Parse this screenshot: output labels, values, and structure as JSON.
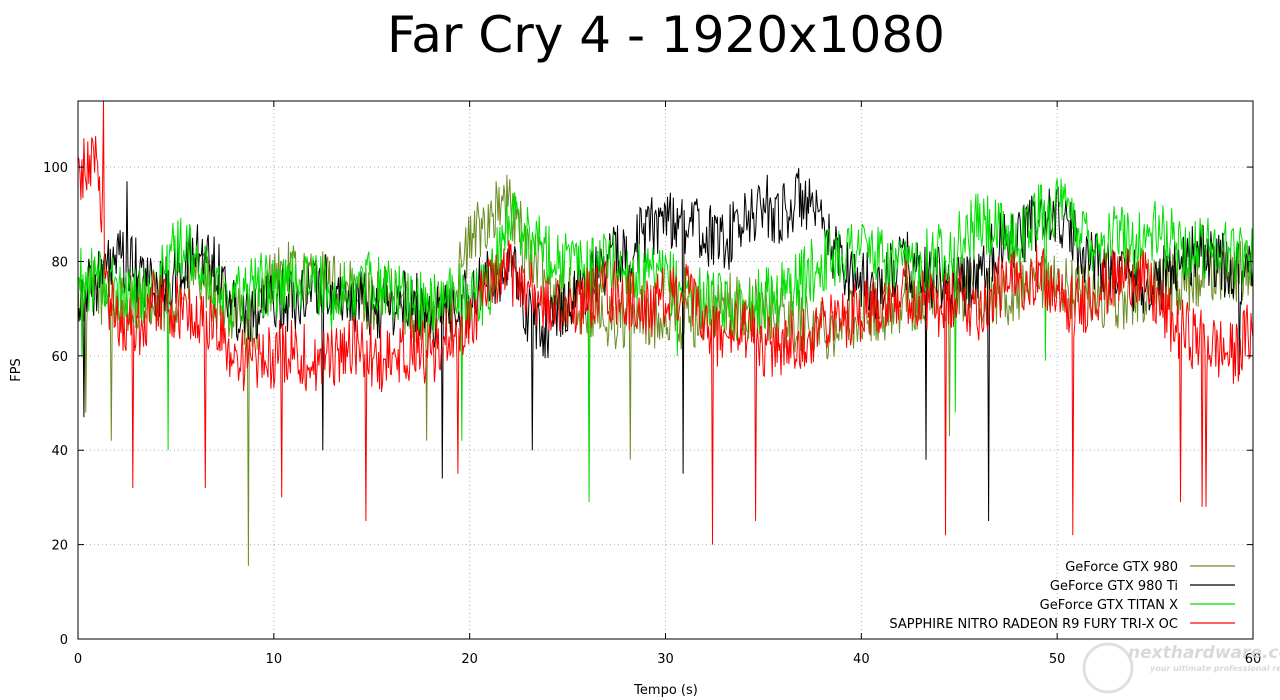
{
  "chart_data": {
    "type": "line",
    "title": "Far Cry 4 - 1920x1080",
    "xlabel": "Tempo (s)",
    "ylabel": "FPS",
    "xlim": [
      0,
      60
    ],
    "ylim": [
      0,
      114
    ],
    "xticks": [
      0,
      10,
      20,
      30,
      40,
      50,
      60
    ],
    "yticks": [
      0,
      20,
      40,
      60,
      80,
      100
    ],
    "grid": true,
    "legend_position": "bottom-right",
    "series": [
      {
        "name": "GeForce GTX 980",
        "color": "#6b8e23",
        "x": [
          0,
          1,
          2,
          3,
          4,
          5,
          6,
          7,
          8,
          9,
          10,
          11,
          12,
          13,
          14,
          15,
          16,
          17,
          18,
          19,
          20,
          21,
          22,
          23,
          24,
          25,
          26,
          27,
          28,
          29,
          30,
          31,
          32,
          33,
          34,
          35,
          36,
          37,
          38,
          39,
          40,
          41,
          42,
          43,
          44,
          45,
          46,
          47,
          48,
          49,
          50,
          51,
          52,
          53,
          54,
          55,
          56,
          57,
          58,
          59,
          60
        ],
        "values": [
          72,
          74,
          70,
          73,
          69,
          72,
          78,
          72,
          70,
          66,
          78,
          77,
          76,
          75,
          73,
          72,
          72,
          70,
          68,
          72,
          84,
          90,
          92,
          82,
          76,
          72,
          70,
          68,
          67,
          68,
          69,
          67,
          70,
          71,
          70,
          69,
          68,
          67,
          66,
          67,
          69,
          70,
          71,
          72,
          73,
          74,
          73,
          72,
          73,
          74,
          75,
          74,
          73,
          72,
          73,
          74,
          75,
          76,
          77,
          78,
          78
        ],
        "spikes": [
          [
            0.4,
            48
          ],
          [
            1.7,
            42
          ],
          [
            8.7,
            15.5
          ],
          [
            17.8,
            42
          ],
          [
            26.1,
            42
          ],
          [
            28.2,
            38
          ],
          [
            44.5,
            43
          ]
        ]
      },
      {
        "name": "GeForce GTX 980 Ti",
        "color": "#000000",
        "x": [
          0,
          1,
          2,
          3,
          4,
          5,
          6,
          7,
          8,
          9,
          10,
          11,
          12,
          13,
          14,
          15,
          16,
          17,
          18,
          19,
          20,
          21,
          22,
          23,
          24,
          25,
          26,
          27,
          28,
          29,
          30,
          31,
          32,
          33,
          34,
          35,
          36,
          37,
          38,
          39,
          40,
          41,
          42,
          43,
          44,
          45,
          46,
          47,
          48,
          49,
          50,
          51,
          52,
          53,
          54,
          55,
          56,
          57,
          58,
          59,
          60
        ],
        "values": [
          72,
          76,
          80,
          78,
          74,
          76,
          82,
          80,
          70,
          70,
          72,
          72,
          76,
          74,
          72,
          70,
          70,
          72,
          68,
          70,
          72,
          76,
          80,
          68,
          66,
          72,
          76,
          80,
          82,
          86,
          90,
          88,
          86,
          84,
          88,
          92,
          90,
          94,
          86,
          80,
          76,
          74,
          80,
          78,
          76,
          74,
          78,
          84,
          86,
          88,
          90,
          84,
          80,
          78,
          76,
          74,
          80,
          82,
          80,
          78,
          78
        ],
        "spikes": [
          [
            0.3,
            47
          ],
          [
            2.5,
            97
          ],
          [
            12.5,
            40
          ],
          [
            18.6,
            34
          ],
          [
            23.2,
            40
          ],
          [
            30.9,
            35
          ],
          [
            43.3,
            38
          ],
          [
            46.5,
            25
          ],
          [
            59.3,
            56
          ]
        ]
      },
      {
        "name": "GeForce GTX TITAN X",
        "color": "#00e000",
        "x": [
          0,
          1,
          2,
          3,
          4,
          5,
          6,
          7,
          8,
          9,
          10,
          11,
          12,
          13,
          14,
          15,
          16,
          17,
          18,
          19,
          20,
          21,
          22,
          23,
          24,
          25,
          26,
          27,
          28,
          29,
          30,
          31,
          32,
          33,
          34,
          35,
          36,
          37,
          38,
          39,
          40,
          41,
          42,
          43,
          44,
          45,
          46,
          47,
          48,
          49,
          50,
          51,
          52,
          53,
          54,
          55,
          56,
          57,
          58,
          59,
          60
        ],
        "values": [
          76,
          76,
          74,
          72,
          74,
          84,
          80,
          74,
          72,
          76,
          74,
          76,
          76,
          72,
          74,
          76,
          74,
          72,
          70,
          74,
          72,
          74,
          90,
          86,
          82,
          80,
          78,
          80,
          78,
          76,
          76,
          74,
          72,
          70,
          70,
          72,
          74,
          76,
          80,
          82,
          84,
          80,
          78,
          80,
          82,
          84,
          88,
          86,
          84,
          90,
          92,
          88,
          84,
          86,
          84,
          86,
          84,
          82,
          84,
          82,
          82
        ],
        "spikes": [
          [
            0.2,
            60
          ],
          [
            4.6,
            40
          ],
          [
            19.6,
            42
          ],
          [
            26.1,
            29
          ],
          [
            30.6,
            60
          ],
          [
            44.8,
            48
          ],
          [
            49.4,
            59
          ]
        ]
      },
      {
        "name": "SAPPHIRE NITRO RADEON R9 FURY TRI-X OC",
        "color": "#ff0000",
        "x": [
          0,
          0.5,
          1,
          1.5,
          2,
          3,
          4,
          5,
          6,
          7,
          8,
          9,
          10,
          11,
          12,
          13,
          14,
          15,
          16,
          17,
          18,
          19,
          20,
          21,
          22,
          23,
          24,
          25,
          26,
          27,
          28,
          29,
          30,
          31,
          32,
          33,
          34,
          35,
          36,
          37,
          38,
          39,
          40,
          41,
          42,
          43,
          44,
          45,
          46,
          47,
          48,
          49,
          50,
          51,
          52,
          53,
          54,
          55,
          56,
          57,
          58,
          59,
          60
        ],
        "values": [
          98,
          100,
          104,
          72,
          68,
          66,
          72,
          70,
          68,
          66,
          60,
          58,
          60,
          62,
          58,
          60,
          62,
          60,
          58,
          62,
          60,
          64,
          68,
          74,
          78,
          74,
          70,
          70,
          72,
          74,
          72,
          70,
          72,
          74,
          66,
          64,
          66,
          62,
          62,
          64,
          66,
          68,
          70,
          72,
          74,
          72,
          70,
          72,
          70,
          74,
          76,
          78,
          72,
          70,
          74,
          76,
          78,
          72,
          66,
          64,
          62,
          60,
          66
        ],
        "spikes": [
          [
            1.3,
            114
          ],
          [
            2.8,
            32
          ],
          [
            6.5,
            32
          ],
          [
            10.4,
            30
          ],
          [
            14.7,
            25
          ],
          [
            19.4,
            35
          ],
          [
            32.4,
            20
          ],
          [
            34.6,
            25
          ],
          [
            44.3,
            22
          ],
          [
            50.8,
            22
          ],
          [
            56.3,
            29
          ],
          [
            57.4,
            28
          ],
          [
            57.6,
            28
          ],
          [
            60,
            64
          ]
        ]
      }
    ]
  },
  "watermark": {
    "brand": "nexthardware.com",
    "slogan": "your ultimate professional resource"
  }
}
